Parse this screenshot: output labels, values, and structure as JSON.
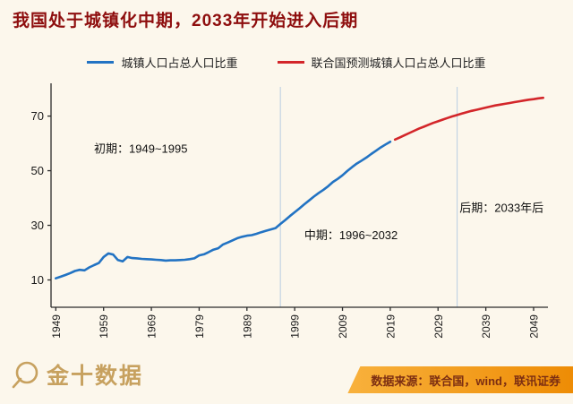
{
  "page": {
    "bg": "#fcf7ec",
    "title_color": "#8e0e0e"
  },
  "title": "我国处于城镇化中期，2033年开始进入后期",
  "legend": [
    {
      "label": "城镇人口占总人口比重",
      "color": "#2273c3"
    },
    {
      "label": "联合国预测城镇人口占总人口比重",
      "color": "#d3262a"
    }
  ],
  "chart_data": {
    "type": "line",
    "title": "",
    "xlabel": "",
    "ylabel": "",
    "xlim": [
      1948,
      2052
    ],
    "ylim": [
      0,
      82
    ],
    "yticks": [
      10,
      30,
      50,
      70
    ],
    "xticks": [
      1949,
      1959,
      1969,
      1979,
      1989,
      1999,
      2009,
      2019,
      2029,
      2039,
      2049
    ],
    "grid": false,
    "legend_position": "top",
    "axis_color": "#2b2b2b",
    "tick_label_color": "#1a1a1a",
    "annotation_color": "#111111",
    "reference_line_color": "#b8cde3",
    "reference_lines": [
      {
        "x": 1996
      },
      {
        "x": 2033
      }
    ],
    "annotations": [
      {
        "text": "初期：1949~1995",
        "x": 1957,
        "y": 56.5
      },
      {
        "text": "中期：1996~2032",
        "x": 2001,
        "y": 25
      },
      {
        "text": "后期：2033年后",
        "x": 2033.5,
        "y": 35
      }
    ],
    "series": [
      {
        "name": "城镇人口占总人口比重",
        "color": "#2273c3",
        "points": [
          [
            1949,
            10.6
          ],
          [
            1950,
            11.2
          ],
          [
            1951,
            11.8
          ],
          [
            1952,
            12.5
          ],
          [
            1953,
            13.3
          ],
          [
            1954,
            13.7
          ],
          [
            1955,
            13.5
          ],
          [
            1956,
            14.6
          ],
          [
            1957,
            15.4
          ],
          [
            1958,
            16.2
          ],
          [
            1959,
            18.4
          ],
          [
            1960,
            19.7
          ],
          [
            1961,
            19.3
          ],
          [
            1962,
            17.3
          ],
          [
            1963,
            16.8
          ],
          [
            1964,
            18.4
          ],
          [
            1965,
            18.0
          ],
          [
            1966,
            17.9
          ],
          [
            1967,
            17.7
          ],
          [
            1968,
            17.6
          ],
          [
            1969,
            17.5
          ],
          [
            1970,
            17.4
          ],
          [
            1971,
            17.3
          ],
          [
            1972,
            17.1
          ],
          [
            1973,
            17.2
          ],
          [
            1974,
            17.2
          ],
          [
            1975,
            17.3
          ],
          [
            1976,
            17.4
          ],
          [
            1977,
            17.6
          ],
          [
            1978,
            17.9
          ],
          [
            1979,
            19.0
          ],
          [
            1980,
            19.4
          ],
          [
            1981,
            20.2
          ],
          [
            1982,
            21.1
          ],
          [
            1983,
            21.6
          ],
          [
            1984,
            23.0
          ],
          [
            1985,
            23.7
          ],
          [
            1986,
            24.5
          ],
          [
            1987,
            25.3
          ],
          [
            1988,
            25.8
          ],
          [
            1989,
            26.2
          ],
          [
            1990,
            26.4
          ],
          [
            1991,
            26.9
          ],
          [
            1992,
            27.5
          ],
          [
            1993,
            28.0
          ],
          [
            1994,
            28.5
          ],
          [
            1995,
            29.0
          ],
          [
            1996,
            30.5
          ],
          [
            1997,
            31.9
          ],
          [
            1998,
            33.4
          ],
          [
            1999,
            34.8
          ],
          [
            2000,
            36.2
          ],
          [
            2001,
            37.7
          ],
          [
            2002,
            39.1
          ],
          [
            2003,
            40.5
          ],
          [
            2004,
            41.8
          ],
          [
            2005,
            43.0
          ],
          [
            2006,
            44.3
          ],
          [
            2007,
            45.9
          ],
          [
            2008,
            47.0
          ],
          [
            2009,
            48.3
          ],
          [
            2010,
            49.9
          ],
          [
            2011,
            51.3
          ],
          [
            2012,
            52.6
          ],
          [
            2013,
            53.7
          ],
          [
            2014,
            54.8
          ],
          [
            2015,
            56.1
          ],
          [
            2016,
            57.3
          ],
          [
            2017,
            58.5
          ],
          [
            2018,
            59.6
          ],
          [
            2019,
            60.6
          ]
        ]
      },
      {
        "name": "联合国预测城镇人口占总人口比重",
        "color": "#d3262a",
        "points": [
          [
            2020,
            61.4
          ],
          [
            2021,
            62.2
          ],
          [
            2022,
            63.0
          ],
          [
            2023,
            63.8
          ],
          [
            2024,
            64.6
          ],
          [
            2025,
            65.4
          ],
          [
            2026,
            66.1
          ],
          [
            2027,
            66.8
          ],
          [
            2028,
            67.5
          ],
          [
            2029,
            68.1
          ],
          [
            2030,
            68.7
          ],
          [
            2031,
            69.3
          ],
          [
            2032,
            69.9
          ],
          [
            2033,
            70.4
          ],
          [
            2034,
            70.9
          ],
          [
            2035,
            71.4
          ],
          [
            2036,
            71.9
          ],
          [
            2037,
            72.3
          ],
          [
            2038,
            72.7
          ],
          [
            2039,
            73.1
          ],
          [
            2040,
            73.5
          ],
          [
            2041,
            73.9
          ],
          [
            2042,
            74.2
          ],
          [
            2043,
            74.5
          ],
          [
            2044,
            74.8
          ],
          [
            2045,
            75.1
          ],
          [
            2046,
            75.4
          ],
          [
            2047,
            75.7
          ],
          [
            2048,
            76.0
          ],
          [
            2049,
            76.2
          ],
          [
            2050,
            76.5
          ],
          [
            2051,
            76.7
          ]
        ]
      }
    ]
  },
  "footer": {
    "logo_text": "金十数据",
    "logo_color": "#c7a15f",
    "source_text": "数据来源：联合国，wind，联讯证券",
    "bar_colors": [
      "#f8b13c",
      "#ee8c05"
    ],
    "source_color": "#7c2e12"
  }
}
